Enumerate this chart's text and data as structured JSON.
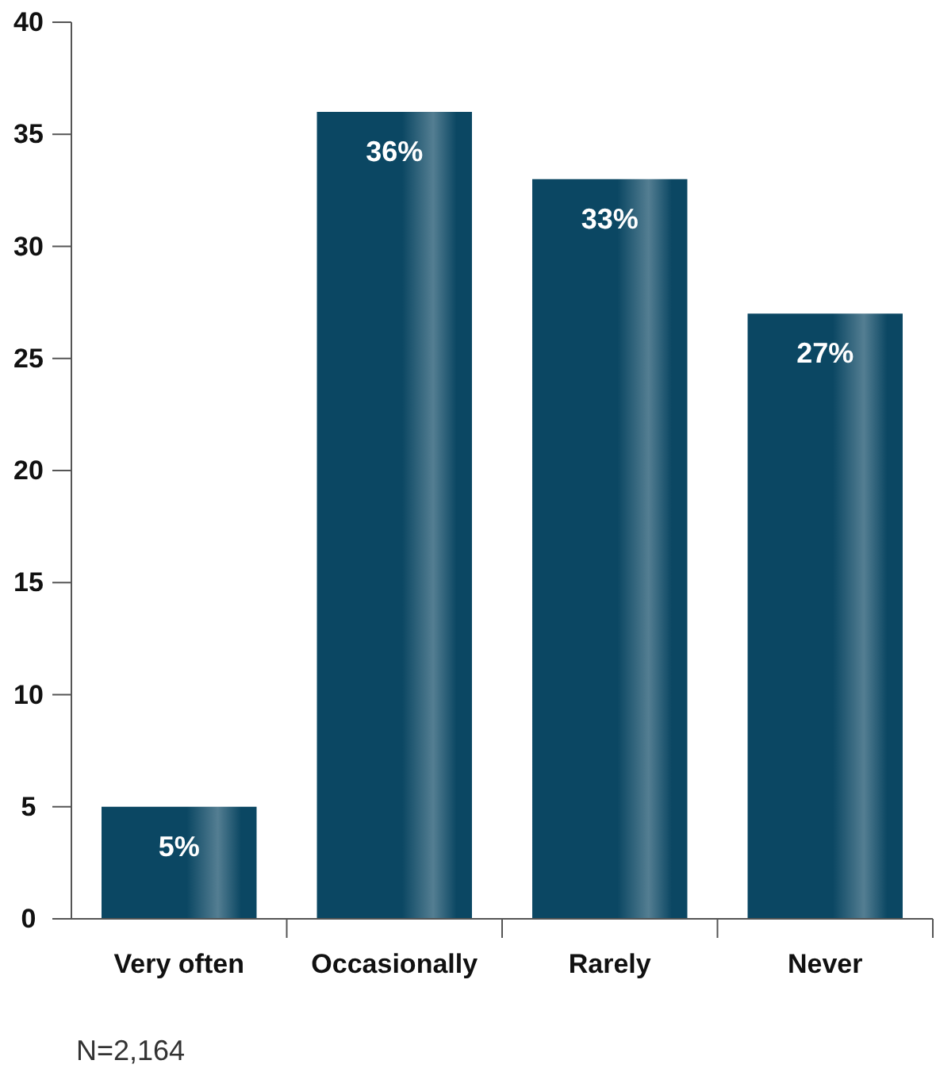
{
  "chart_data": {
    "type": "bar",
    "categories": [
      "Very often",
      "Occasionally",
      "Rarely",
      "Never"
    ],
    "values": [
      5,
      36,
      33,
      27
    ],
    "value_labels": [
      "5%",
      "36%",
      "33%",
      "27%"
    ],
    "color": "#0b4763",
    "ylim": [
      0,
      40
    ],
    "yticks": [
      0,
      5,
      10,
      15,
      20,
      25,
      30,
      35,
      40
    ],
    "grid": false,
    "annotations": [
      "N=2,164"
    ]
  }
}
